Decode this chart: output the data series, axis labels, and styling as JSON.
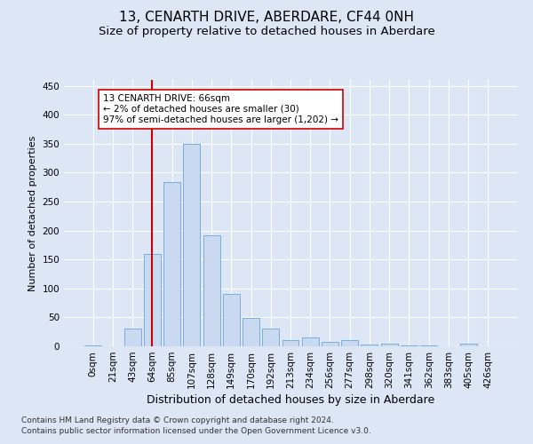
{
  "title": "13, CENARTH DRIVE, ABERDARE, CF44 0NH",
  "subtitle": "Size of property relative to detached houses in Aberdare",
  "xlabel": "Distribution of detached houses by size in Aberdare",
  "ylabel": "Number of detached properties",
  "footer_line1": "Contains HM Land Registry data © Crown copyright and database right 2024.",
  "footer_line2": "Contains public sector information licensed under the Open Government Licence v3.0.",
  "bar_labels": [
    "0sqm",
    "21sqm",
    "43sqm",
    "64sqm",
    "85sqm",
    "107sqm",
    "128sqm",
    "149sqm",
    "170sqm",
    "192sqm",
    "213sqm",
    "234sqm",
    "256sqm",
    "277sqm",
    "298sqm",
    "320sqm",
    "341sqm",
    "362sqm",
    "383sqm",
    "405sqm",
    "426sqm"
  ],
  "bar_values": [
    2,
    0,
    30,
    160,
    284,
    350,
    192,
    91,
    49,
    30,
    10,
    16,
    7,
    10,
    3,
    5,
    1,
    1,
    0,
    5,
    0
  ],
  "bar_color": "#c9d9f0",
  "bar_edge_color": "#7aaddb",
  "vline_x": 3,
  "vline_color": "#cc0000",
  "annotation_text": "13 CENARTH DRIVE: 66sqm\n← 2% of detached houses are smaller (30)\n97% of semi-detached houses are larger (1,202) →",
  "annotation_box_color": "#ffffff",
  "annotation_box_edge": "#cc0000",
  "ylim": [
    0,
    460
  ],
  "background_color": "#dce6f5",
  "plot_bg_color": "#dce6f5",
  "grid_color": "#ffffff",
  "title_fontsize": 11,
  "subtitle_fontsize": 9.5,
  "xlabel_fontsize": 9,
  "ylabel_fontsize": 8,
  "tick_fontsize": 7.5,
  "footer_fontsize": 6.5,
  "annotation_fontsize": 7.5
}
